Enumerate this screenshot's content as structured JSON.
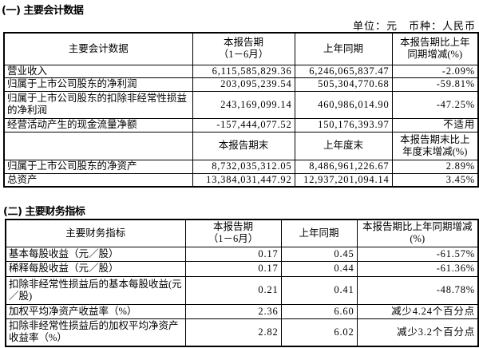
{
  "section1": {
    "title": "(一) 主要会计数据",
    "unit": "单位：元　币种：人民币",
    "header": [
      "主要会计数据",
      "本报告期\n（1－6月）",
      "上年同期",
      "本报告期比上年\n同期增减(%)"
    ],
    "rows": [
      [
        "营业收入",
        "6,115,585,829.36",
        "6,246,065,837.47",
        "-2.09%"
      ],
      [
        "归属于上市公司股东的净利润",
        "203,095,239.54",
        "505,304,770.68",
        "-59.81%"
      ],
      [
        "归属于上市公司股东的扣除非经常性损益的净利润",
        "243,169,099.14",
        "460,986,014.90",
        "-47.25%"
      ],
      [
        "经营活动产生的现金流量净额",
        "-157,444,077.52",
        "150,176,393.97",
        "不适用"
      ]
    ],
    "header2": [
      "",
      "本报告期末",
      "上年度末",
      "本报告期末比上\n年度末增减(%)"
    ],
    "rows2": [
      [
        "归属于上市公司股东的净资产",
        "8,732,035,312.05",
        "8,486,961,226.67",
        "2.89%"
      ],
      [
        "总资产",
        "13,384,031,447.92",
        "12,937,201,094.14",
        "3.45%"
      ]
    ]
  },
  "section2": {
    "title": "(二) 主要财务指标",
    "header": [
      "主要财务指标",
      "本报告期\n（1－6月）",
      "上年同期",
      "本报告期比上年同期增减\n(%)"
    ],
    "rows": [
      [
        "基本每股收益（元／股）",
        "0.17",
        "0.45",
        "-61.57%"
      ],
      [
        "稀释每股收益（元／股）",
        "0.17",
        "0.44",
        "-61.36%"
      ],
      [
        "扣除非经常性损益后的基本每股收益(元／股)",
        "0.21",
        "0.41",
        "-48.78%"
      ],
      [
        "加权平均净资产收益率（%）",
        "2.36",
        "6.60",
        "减少4.24个百分点"
      ],
      [
        "扣除非经常性损益后的加权平均净资产收益率（%）",
        "2.82",
        "6.02",
        "减少3.2个百分点"
      ]
    ]
  }
}
